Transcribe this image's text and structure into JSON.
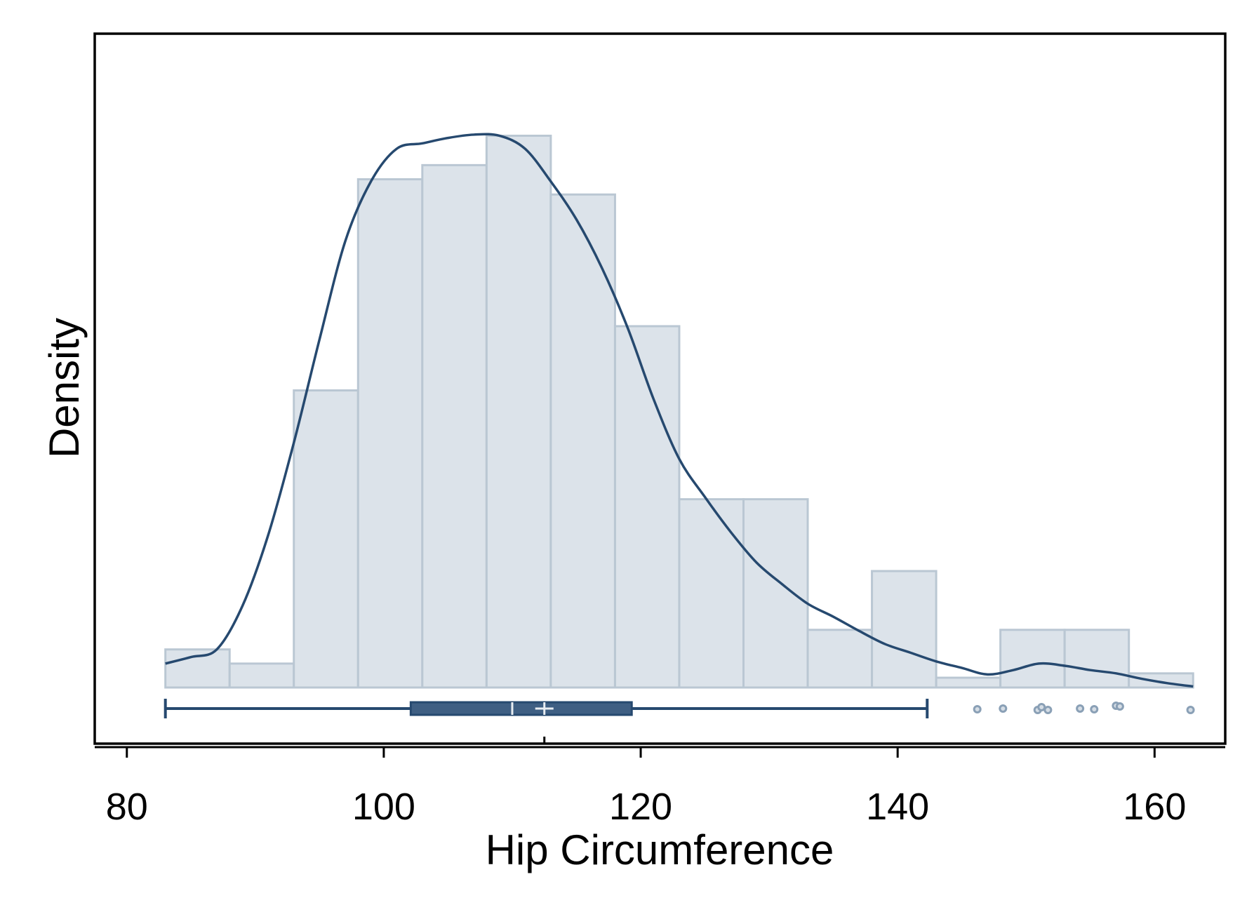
{
  "chart_data": {
    "type": "bar",
    "xlabel": "Hip Circumference",
    "ylabel": "Density",
    "xlim": [
      77.5,
      165.5
    ],
    "x_ticks": [
      80,
      100,
      120,
      140,
      160
    ],
    "y_ticks_shown": false,
    "histogram": {
      "bin_edges": [
        83,
        88,
        93,
        98,
        103,
        108,
        113,
        118,
        123,
        128,
        133,
        138,
        143,
        148,
        153,
        158,
        163
      ],
      "density": [
        0.0035,
        0.0022,
        0.0273,
        0.0467,
        0.048,
        0.0507,
        0.0453,
        0.0332,
        0.0173,
        0.0173,
        0.0053,
        0.0107,
        0.0009,
        0.0053,
        0.0053,
        0.0013
      ],
      "ylim": [
        0,
        0.0575
      ]
    },
    "kde": {
      "x": [
        83,
        85,
        87,
        89,
        91,
        93,
        95,
        97,
        99,
        101,
        103,
        105,
        107,
        109,
        111,
        113,
        115,
        117,
        119,
        121,
        123,
        125,
        127,
        129,
        131,
        133,
        135,
        137,
        139,
        141,
        143,
        145,
        147,
        149,
        151,
        153,
        155,
        157,
        159,
        161,
        163
      ],
      "density": [
        0.0022,
        0.0028,
        0.0035,
        0.0075,
        0.014,
        0.0225,
        0.032,
        0.041,
        0.0465,
        0.0495,
        0.05,
        0.0505,
        0.0508,
        0.0507,
        0.0495,
        0.0465,
        0.043,
        0.0385,
        0.033,
        0.0265,
        0.021,
        0.0175,
        0.0143,
        0.0115,
        0.0095,
        0.0077,
        0.0065,
        0.0052,
        0.004,
        0.0032,
        0.0024,
        0.0018,
        0.0012,
        0.0016,
        0.0022,
        0.002,
        0.0016,
        0.0013,
        0.0008,
        0.0004,
        0.0001
      ]
    },
    "boxplot": {
      "whisker_low": 83,
      "q1": 102.1,
      "median": 110,
      "mean": 112.5,
      "q3": 119.3,
      "whisker_high": 142.3,
      "outliers": [
        146.2,
        148.2,
        150.9,
        151.2,
        151.7,
        154.2,
        155.3,
        157.0,
        157.3,
        162.8
      ]
    }
  }
}
